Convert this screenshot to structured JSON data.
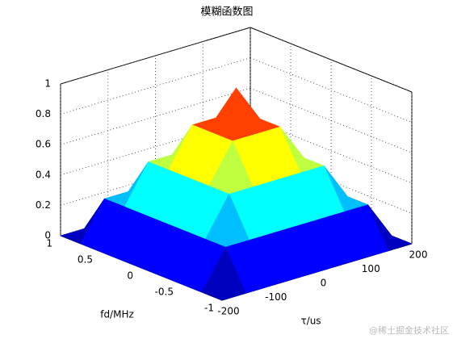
{
  "chart_data": {
    "type": "surface",
    "title": "模糊函数图",
    "xlabel": "τ/us",
    "ylabel": "fd/MHz",
    "x": [
      -200,
      -150,
      -100,
      -50,
      0,
      50,
      100,
      150,
      200
    ],
    "y": [
      -1,
      -0.75,
      -0.5,
      -0.25,
      0,
      0.25,
      0.5,
      0.75,
      1
    ],
    "z": [
      [
        0,
        0,
        0,
        0,
        0,
        0,
        0,
        0,
        0
      ],
      [
        0,
        0.25,
        0.25,
        0.25,
        0.25,
        0.25,
        0.25,
        0.25,
        0
      ],
      [
        0,
        0.25,
        0.5,
        0.5,
        0.5,
        0.5,
        0.5,
        0.25,
        0
      ],
      [
        0,
        0.25,
        0.5,
        0.75,
        0.75,
        0.75,
        0.5,
        0.25,
        0
      ],
      [
        0,
        0.25,
        0.5,
        0.75,
        1,
        0.75,
        0.5,
        0.25,
        0
      ],
      [
        0,
        0.25,
        0.5,
        0.75,
        0.75,
        0.75,
        0.5,
        0.25,
        0
      ],
      [
        0,
        0.25,
        0.5,
        0.5,
        0.5,
        0.5,
        0.5,
        0.25,
        0
      ],
      [
        0,
        0.25,
        0.25,
        0.25,
        0.25,
        0.25,
        0.25,
        0.25,
        0
      ],
      [
        0,
        0,
        0,
        0,
        0,
        0,
        0,
        0,
        0
      ]
    ],
    "xlim": [
      -200,
      200
    ],
    "ylim": [
      -1,
      1
    ],
    "zlim": [
      0,
      1
    ],
    "xticks": [
      -200,
      -100,
      0,
      100,
      200
    ],
    "yticks": [
      -1,
      -0.5,
      0,
      0.5,
      1
    ],
    "zticks": [
      0,
      0.2,
      0.4,
      0.6,
      0.8,
      1
    ],
    "grid": true,
    "colormap": "jet"
  },
  "watermark": "@稀土掘金技术社区"
}
